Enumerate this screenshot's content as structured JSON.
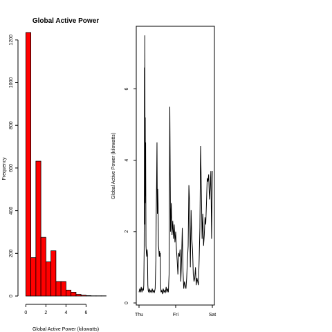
{
  "chart_data": [
    {
      "type": "bar",
      "title": "Global Active Power",
      "xlabel": "Global Active Power (kilowatts)",
      "ylabel": "Frequency",
      "bar_color": "#ff0000",
      "bin_edges": [
        0,
        0.5,
        1,
        1.5,
        2,
        2.5,
        3,
        3.5,
        4,
        4.5,
        5,
        5.5,
        6,
        6.5,
        7,
        7.5,
        8
      ],
      "values": [
        1235,
        180,
        632,
        275,
        160,
        212,
        68,
        68,
        28,
        18,
        8,
        4,
        2,
        1,
        1,
        1
      ],
      "xlim": [
        -0.3,
        7.9
      ],
      "ylim": [
        0,
        1235
      ],
      "x_ticks": [
        "0",
        "2",
        "4",
        "6"
      ],
      "y_ticks": [
        "0",
        "200",
        "400",
        "600",
        "800",
        "1000",
        "1200"
      ],
      "grid": false
    },
    {
      "type": "line",
      "title": "",
      "xlabel": "",
      "ylabel": "Global Active Power (kilowatts)",
      "line_color": "#000000",
      "x_tick_labels": [
        "Thu",
        "Fri",
        "Sat"
      ],
      "y_ticks": [
        "0",
        "2",
        "4",
        "6"
      ],
      "xlim": [
        0,
        2
      ],
      "ylim": [
        0,
        7.6
      ],
      "grid": false,
      "series": [
        {
          "x": [
            0,
            0.02,
            0.04,
            0.06,
            0.08,
            0.1,
            0.12,
            0.13,
            0.14,
            0.145,
            0.15,
            0.155,
            0.16,
            0.165,
            0.17,
            0.175,
            0.18,
            0.19,
            0.2,
            0.21,
            0.22,
            0.23,
            0.24,
            0.25,
            0.26,
            0.28,
            0.3,
            0.32,
            0.34,
            0.36,
            0.38,
            0.4,
            0.42,
            0.44,
            0.46,
            0.47,
            0.48,
            0.49,
            0.5,
            0.51,
            0.52,
            0.53,
            0.54,
            0.55,
            0.56,
            0.57,
            0.58,
            0.59,
            0.6,
            0.62,
            0.64,
            0.66,
            0.68,
            0.7,
            0.72,
            0.74,
            0.76,
            0.78,
            0.8,
            0.82,
            0.84,
            0.86,
            0.88,
            0.9,
            0.92,
            0.94,
            0.96,
            0.98,
            1.0,
            1.02,
            1.04,
            1.06,
            1.08,
            1.1,
            1.12,
            1.14,
            1.16,
            1.18,
            1.2,
            1.22,
            1.24,
            1.26,
            1.28,
            1.3,
            1.32,
            1.34,
            1.36,
            1.38,
            1.4,
            1.42,
            1.44,
            1.46,
            1.48,
            1.5,
            1.52,
            1.54,
            1.56,
            1.58,
            1.6,
            1.62,
            1.64,
            1.66,
            1.68,
            1.7,
            1.72,
            1.74,
            1.76,
            1.78,
            1.8,
            1.82,
            1.84,
            1.86,
            1.88,
            1.9,
            1.92,
            1.94,
            1.96,
            1.98,
            2.0
          ],
          "y": [
            0.3,
            0.4,
            0.3,
            0.45,
            0.3,
            0.4,
            0.35,
            0.5,
            1.5,
            3.5,
            6.6,
            2.2,
            7.5,
            2.8,
            5.2,
            3.0,
            4.5,
            1.6,
            1.4,
            1.3,
            1.5,
            1.35,
            0.5,
            0.35,
            0.3,
            0.4,
            0.3,
            0.35,
            0.3,
            0.4,
            0.3,
            0.35,
            0.3,
            0.4,
            1.2,
            2.6,
            3.4,
            4.5,
            2.5,
            3.2,
            2.8,
            1.6,
            1.5,
            1.3,
            1.45,
            1.3,
            1.4,
            0.5,
            0.3,
            0.35,
            0.25,
            0.4,
            0.3,
            0.35,
            0.3,
            0.45,
            0.3,
            0.4,
            0.3,
            0.8,
            5.5,
            2.0,
            2.8,
            1.9,
            2.3,
            1.8,
            2.2,
            1.7,
            2.0,
            1.5,
            1.2,
            0.8,
            1.4,
            1.3,
            1.5,
            0.6,
            1.2,
            2.1,
            0.9,
            0.4,
            0.6,
            0.5,
            0.4,
            0.7,
            1.2,
            1.6,
            3.3,
            2.8,
            1.0,
            2.6,
            1.8,
            1.5,
            0.8,
            0.6,
            0.7,
            1.0,
            0.5,
            0.7,
            0.6,
            0.5,
            1.2,
            2.1,
            4.4,
            3.2,
            1.8,
            2.5,
            1.6,
            1.9,
            2.4,
            2.2,
            2.8,
            3.5,
            3.4,
            3.6,
            2.9,
            3.2,
            3.7,
            1.8,
            3.7
          ]
        }
      ]
    }
  ]
}
